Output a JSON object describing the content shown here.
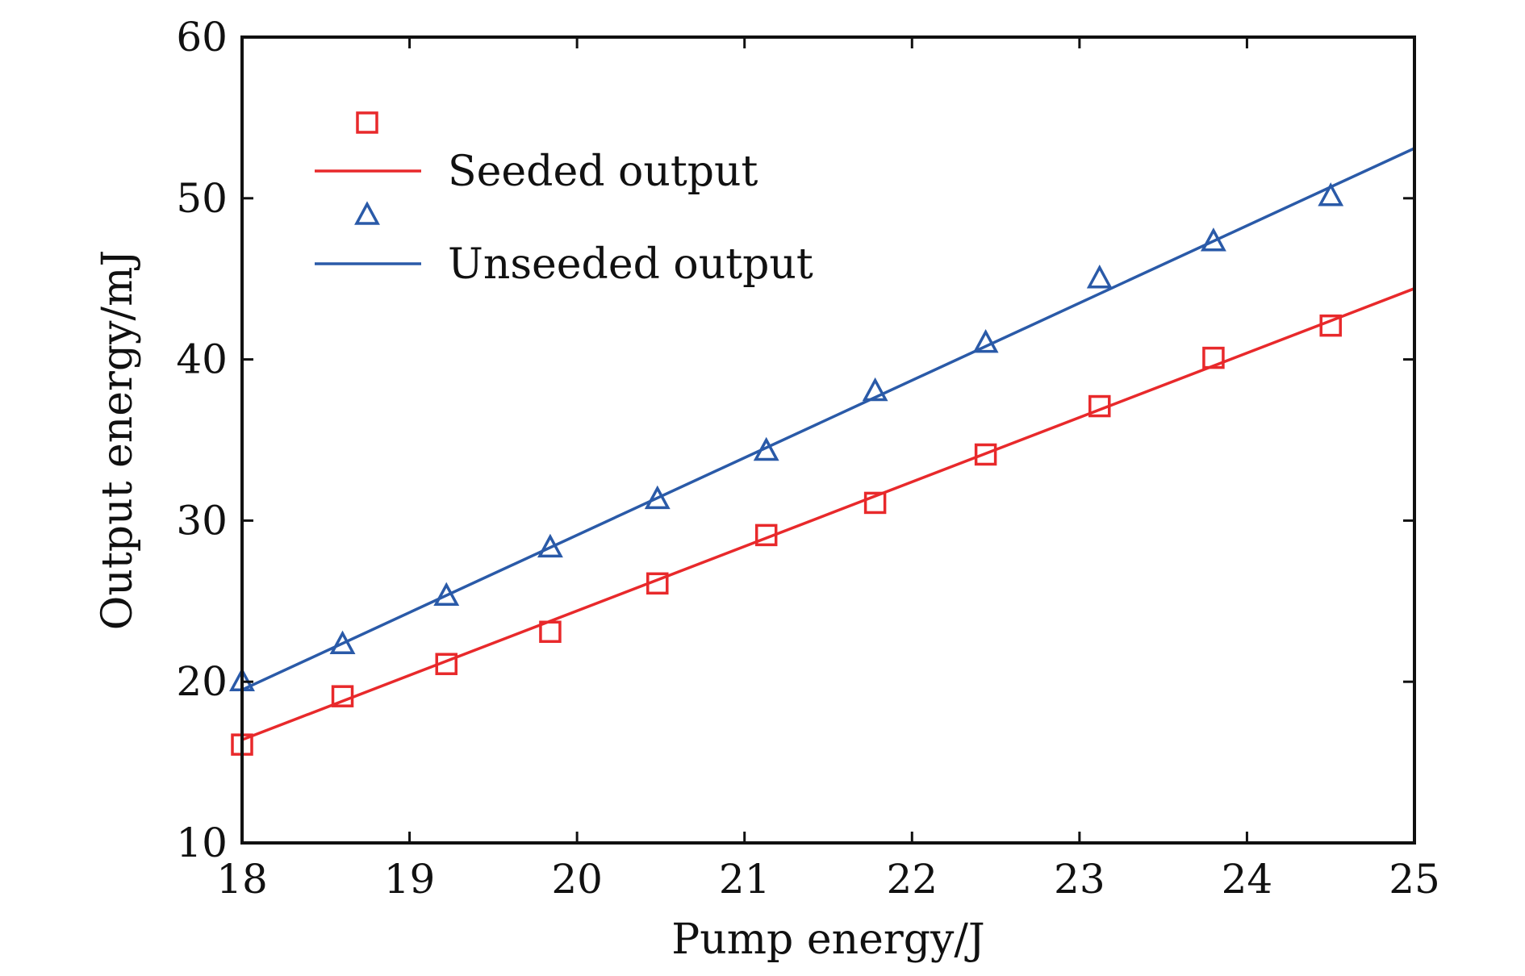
{
  "chart_data": {
    "type": "scatter",
    "title": "",
    "xlabel": "Pump energy/J",
    "ylabel": "Output energy/mJ",
    "xlim": [
      18,
      25
    ],
    "ylim": [
      10,
      60
    ],
    "xticks": [
      18,
      19,
      20,
      21,
      22,
      23,
      24,
      25
    ],
    "yticks": [
      10,
      20,
      30,
      40,
      50,
      60
    ],
    "grid": false,
    "legend_position": "top-left",
    "series": [
      {
        "name": "Seeded output",
        "color": "#e8292b",
        "marker": "square",
        "points": [
          {
            "x": 18.0,
            "y": 16.1
          },
          {
            "x": 18.6,
            "y": 19.1
          },
          {
            "x": 19.22,
            "y": 21.1
          },
          {
            "x": 19.84,
            "y": 23.1
          },
          {
            "x": 20.48,
            "y": 26.1
          },
          {
            "x": 21.13,
            "y": 29.1
          },
          {
            "x": 21.78,
            "y": 31.1
          },
          {
            "x": 22.44,
            "y": 34.1
          },
          {
            "x": 23.12,
            "y": 37.1
          },
          {
            "x": 23.8,
            "y": 40.1
          },
          {
            "x": 24.5,
            "y": 42.1
          }
        ],
        "fit": {
          "x": [
            18,
            25
          ],
          "y": [
            16.4,
            44.4
          ]
        }
      },
      {
        "name": "Unseeded output",
        "color": "#2a5aa8",
        "marker": "triangle",
        "points": [
          {
            "x": 18.0,
            "y": 20.0
          },
          {
            "x": 18.6,
            "y": 22.3
          },
          {
            "x": 19.22,
            "y": 25.3
          },
          {
            "x": 19.84,
            "y": 28.3
          },
          {
            "x": 20.48,
            "y": 31.3
          },
          {
            "x": 21.13,
            "y": 34.3
          },
          {
            "x": 21.78,
            "y": 38.0
          },
          {
            "x": 22.44,
            "y": 41.0
          },
          {
            "x": 23.12,
            "y": 45.0
          },
          {
            "x": 23.8,
            "y": 47.3
          },
          {
            "x": 24.5,
            "y": 50.1
          }
        ],
        "fit": {
          "x": [
            18,
            25
          ],
          "y": [
            19.5,
            53.1
          ]
        }
      }
    ]
  }
}
